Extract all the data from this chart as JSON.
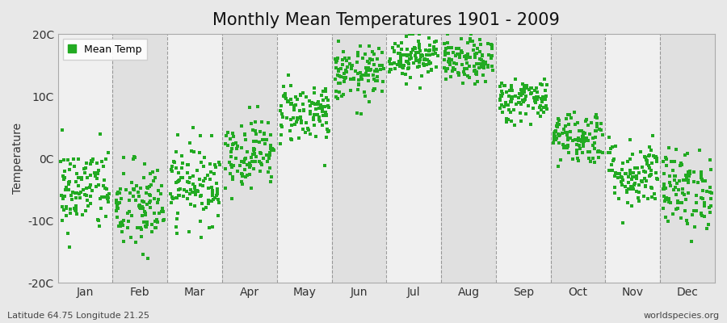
{
  "title": "Monthly Mean Temperatures 1901 - 2009",
  "ylabel": "Temperature",
  "xlabel": "",
  "footnote_left": "Latitude 64.75 Longitude 21.25",
  "footnote_right": "worldspecies.org",
  "ylim": [
    -20,
    20
  ],
  "yticks": [
    -20,
    -10,
    0,
    10,
    20
  ],
  "ytick_labels": [
    "-20C",
    "-10C",
    "0C",
    "10C",
    "20C"
  ],
  "months": [
    "Jan",
    "Feb",
    "Mar",
    "Apr",
    "May",
    "Jun",
    "Jul",
    "Aug",
    "Sep",
    "Oct",
    "Nov",
    "Dec"
  ],
  "dot_color": "#22aa22",
  "dot_size": 5,
  "background_color": "#e8e8e8",
  "plot_bg_color": "#e8e8e8",
  "band_light": "#ebebeb",
  "band_dark": "#d8d8d8",
  "legend_color": "#22aa22",
  "title_fontsize": 15,
  "axis_fontsize": 10,
  "tick_fontsize": 10,
  "grid_color": "#666666",
  "monthly_mean_temps": [
    -5.0,
    -8.0,
    -4.0,
    1.0,
    7.5,
    13.5,
    16.5,
    15.5,
    9.5,
    3.5,
    -2.5,
    -5.0
  ],
  "monthly_std": [
    3.5,
    3.8,
    3.2,
    2.8,
    2.5,
    2.2,
    1.8,
    1.8,
    1.8,
    2.2,
    2.8,
    3.2
  ],
  "n_years": 109,
  "seed": 42
}
